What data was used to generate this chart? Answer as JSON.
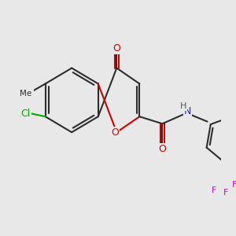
{
  "background_color": "#e8e8e8",
  "bond_color": "#2d2d2d",
  "bond_width": 1.5,
  "figsize": [
    3.0,
    3.0
  ],
  "dpi": 100,
  "colors": {
    "C": "#2d2d2d",
    "O": "#cc0000",
    "N": "#1a1aff",
    "Cl": "#00aa00",
    "F": "#cc00cc",
    "H": "#555555"
  }
}
